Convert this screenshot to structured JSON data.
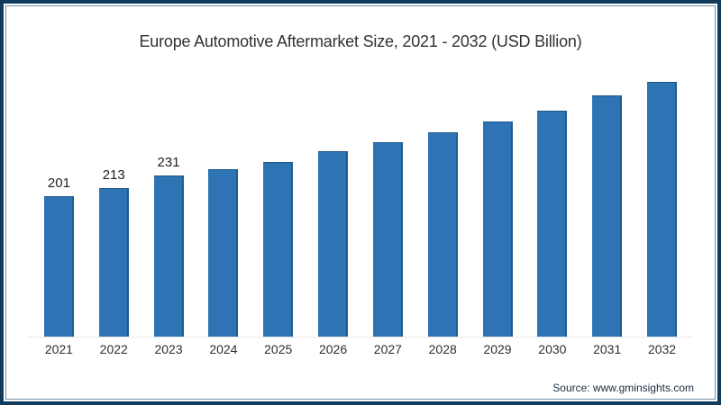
{
  "frame": {
    "outer_border_color": "#123c5e",
    "inner_border_color": "#184669",
    "background": "#ffffff"
  },
  "chart_data": {
    "type": "bar",
    "title": "Europe Automotive Aftermarket Size, 2021 - 2032 (USD Billion)",
    "categories": [
      "2021",
      "2022",
      "2023",
      "2024",
      "2025",
      "2026",
      "2027",
      "2028",
      "2029",
      "2030",
      "2031",
      "2032"
    ],
    "values": [
      201,
      213,
      231,
      240,
      251,
      266,
      279,
      294,
      309,
      325,
      346,
      366
    ],
    "data_labels": [
      "201",
      "213",
      "231",
      "",
      "",
      "",
      "",
      "",
      "",
      "",
      "",
      ""
    ],
    "xlabel": "",
    "ylabel": "",
    "ylim": [
      0,
      380
    ],
    "grid": false,
    "legend": false,
    "bar_color": "#2e74b5",
    "bar_edge_color": "#1f5c94",
    "baseline_color": "#e7e7e7",
    "label_color": "#1f1f1f",
    "tick_color": "#2e2e2e"
  },
  "source": {
    "label": "Source: www.gminsights.com"
  }
}
